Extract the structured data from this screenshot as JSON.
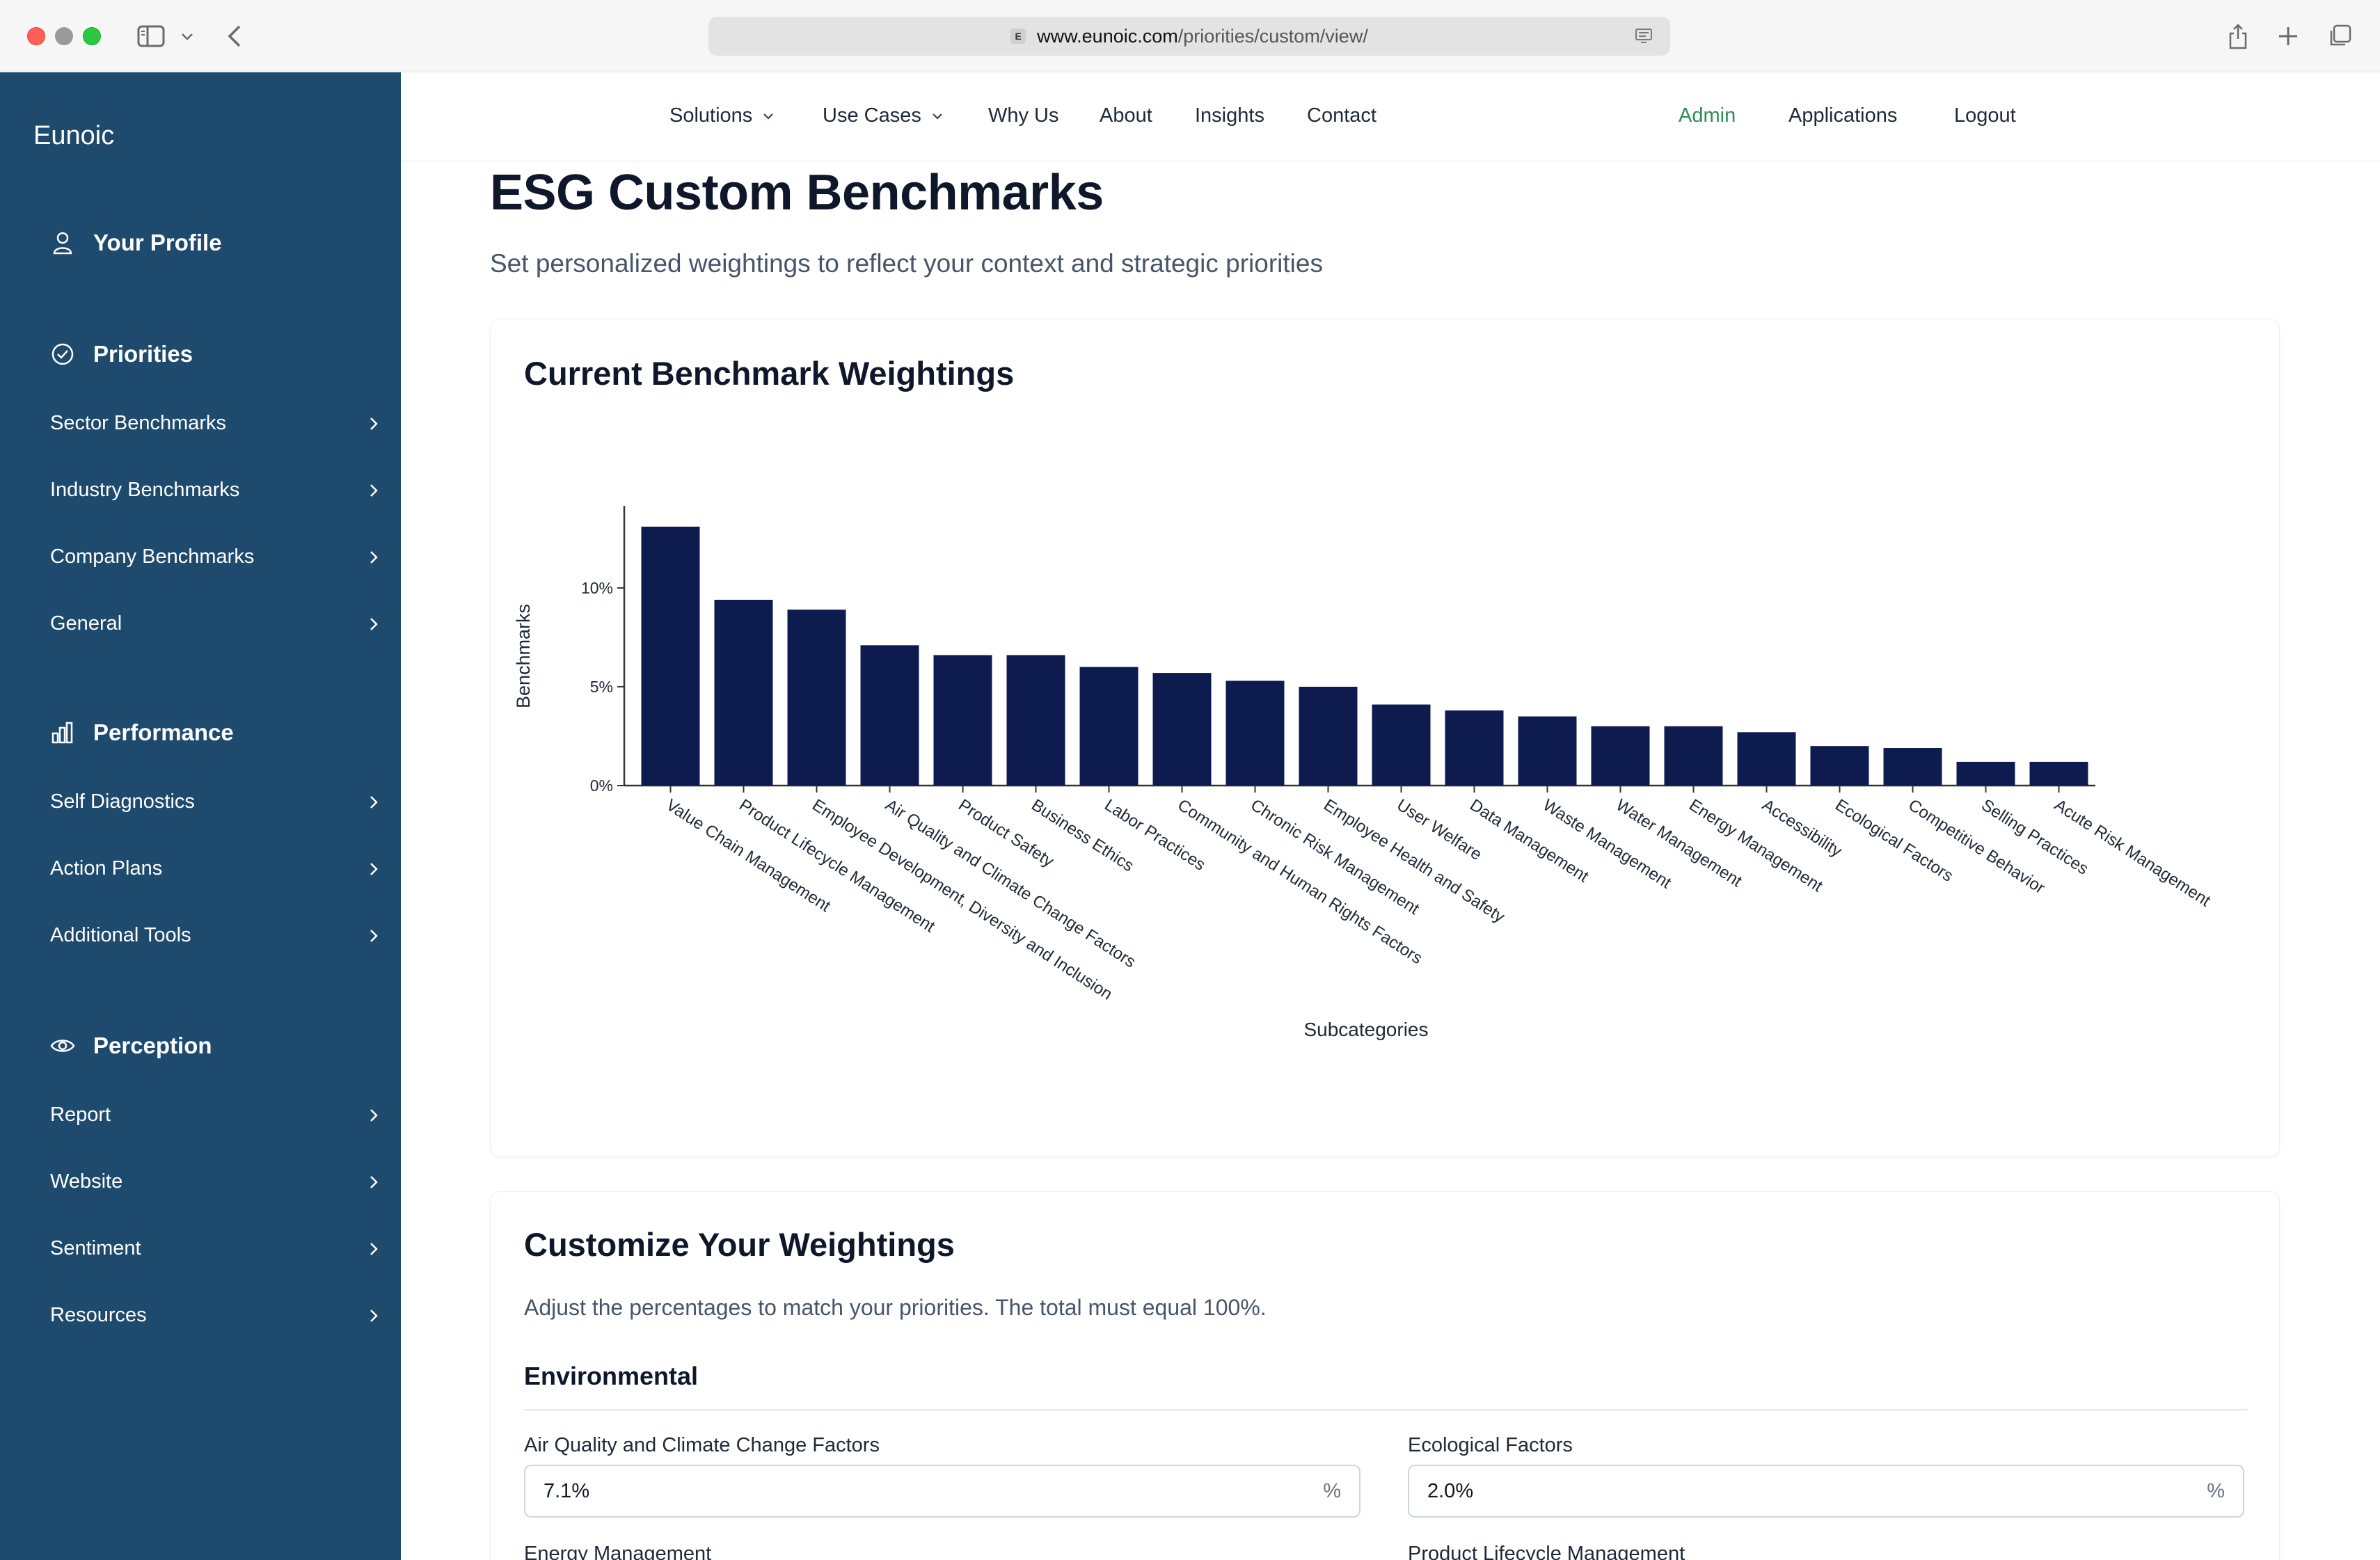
{
  "browser": {
    "url_domain": "www.eunoic.com",
    "url_path": "/priorities/custom/view/",
    "favicon_letter": "E"
  },
  "sidebar": {
    "brand": "Eunoic",
    "profile": "Your Profile",
    "sections": [
      {
        "label": "Priorities",
        "icon": "check-circle-icon",
        "items": [
          "Sector Benchmarks",
          "Industry Benchmarks",
          "Company Benchmarks",
          "General"
        ]
      },
      {
        "label": "Performance",
        "icon": "bar-chart-icon",
        "items": [
          "Self Diagnostics",
          "Action Plans",
          "Additional Tools"
        ]
      },
      {
        "label": "Perception",
        "icon": "eye-icon",
        "items": [
          "Report",
          "Website",
          "Sentiment",
          "Resources"
        ]
      }
    ]
  },
  "nav": {
    "items": [
      "Solutions",
      "Use Cases",
      "Why Us",
      "About",
      "Insights",
      "Contact"
    ],
    "admin": "Admin",
    "applications": "Applications",
    "logout": "Logout",
    "admin_color": "#2e8b57"
  },
  "page": {
    "title": "ESG Custom Benchmarks",
    "subtitle": "Set personalized weightings to reflect your context and strategic priorities"
  },
  "chart_card": {
    "title": "Current Benchmark Weightings"
  },
  "chart_data": {
    "type": "bar",
    "categories": [
      "Value Chain Management",
      "Product Lifecycle Management",
      "Employee Development, Diversity and Inclusion",
      "Air Quality and Climate Change Factors",
      "Product Safety",
      "Business Ethics",
      "Labor Practices",
      "Community and Human Rights Factors",
      "Chronic Risk Management",
      "Employee Health and Safety",
      "User Welfare",
      "Data Management",
      "Waste Management",
      "Water Management",
      "Energy Management",
      "Accessibility",
      "Ecological Factors",
      "Competitive Behavior",
      "Selling Practices",
      "Acute Risk Management"
    ],
    "values": [
      13.1,
      9.4,
      8.9,
      7.1,
      6.6,
      6.6,
      6.0,
      5.7,
      5.3,
      5.0,
      4.1,
      3.8,
      3.5,
      3.0,
      3.0,
      2.7,
      2.0,
      1.9,
      1.2,
      1.2
    ],
    "xlabel": "Subcategories",
    "ylabel": "Benchmarks",
    "yticks": [
      "0%",
      "5%",
      "10%"
    ],
    "ylim": [
      0,
      13.8
    ],
    "bar_color": "#0d1b4f",
    "grid": false
  },
  "customize": {
    "title": "Customize Your Weightings",
    "description": "Adjust the percentages to match your priorities. The total must equal 100%.",
    "group": "Environmental",
    "fields": [
      {
        "label": "Air Quality and Climate Change Factors",
        "value": "7.1%",
        "unit": "%"
      },
      {
        "label": "Ecological Factors",
        "value": "2.0%",
        "unit": "%"
      },
      {
        "label": "Energy Management",
        "value": "",
        "unit": "%"
      },
      {
        "label": "Product Lifecycle Management",
        "value": "",
        "unit": "%"
      }
    ]
  }
}
